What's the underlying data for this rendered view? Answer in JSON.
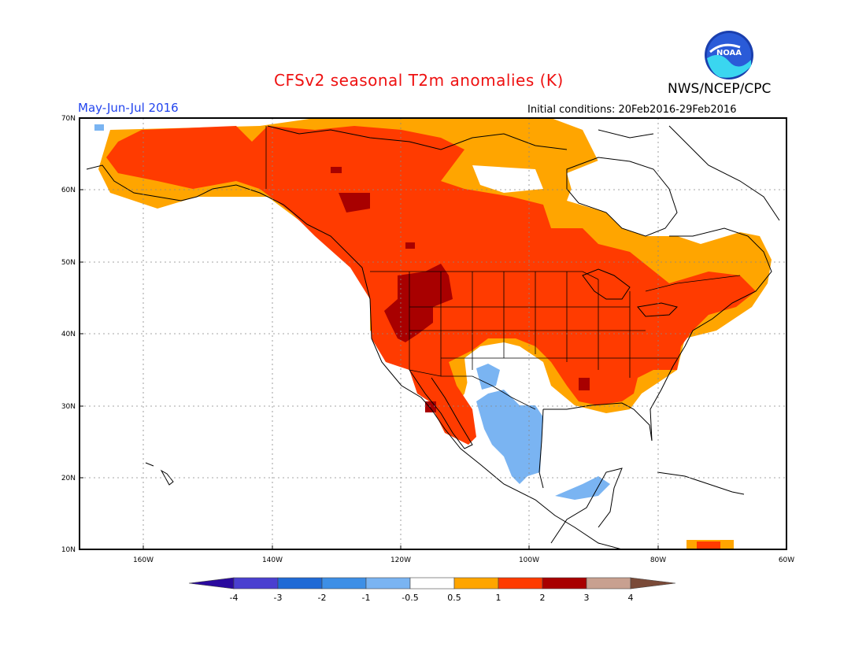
{
  "title": "CFSv2 seasonal T2m anomalies (K)",
  "organization": "NWS/NCEP/CPC",
  "logo_text": "NOAA",
  "period": "May-Jun-Jul 2016",
  "initial_conditions": "Initial conditions: 20Feb2016-29Feb2016",
  "map": {
    "lat_labels": [
      "70N",
      "60N",
      "50N",
      "40N",
      "30N",
      "20N",
      "10N"
    ],
    "lon_labels": [
      "160W",
      "140W",
      "120W",
      "100W",
      "80W",
      "60W"
    ],
    "lat_range": [
      10,
      70
    ],
    "lon_range": [
      -170,
      -60
    ],
    "grid": true
  },
  "colorbar": {
    "labels": [
      "-4",
      "-3",
      "-2",
      "-1",
      "-0.5",
      "0.5",
      "1",
      "2",
      "3",
      "4"
    ],
    "colors": [
      "#2a0a9e",
      "#4a3fd0",
      "#1f6ad6",
      "#3d8fe6",
      "#7ab4f2",
      "#ffffff",
      "#ffa500",
      "#ff3b00",
      "#a80000",
      "#c8a090",
      "#7a4a38"
    ]
  }
}
